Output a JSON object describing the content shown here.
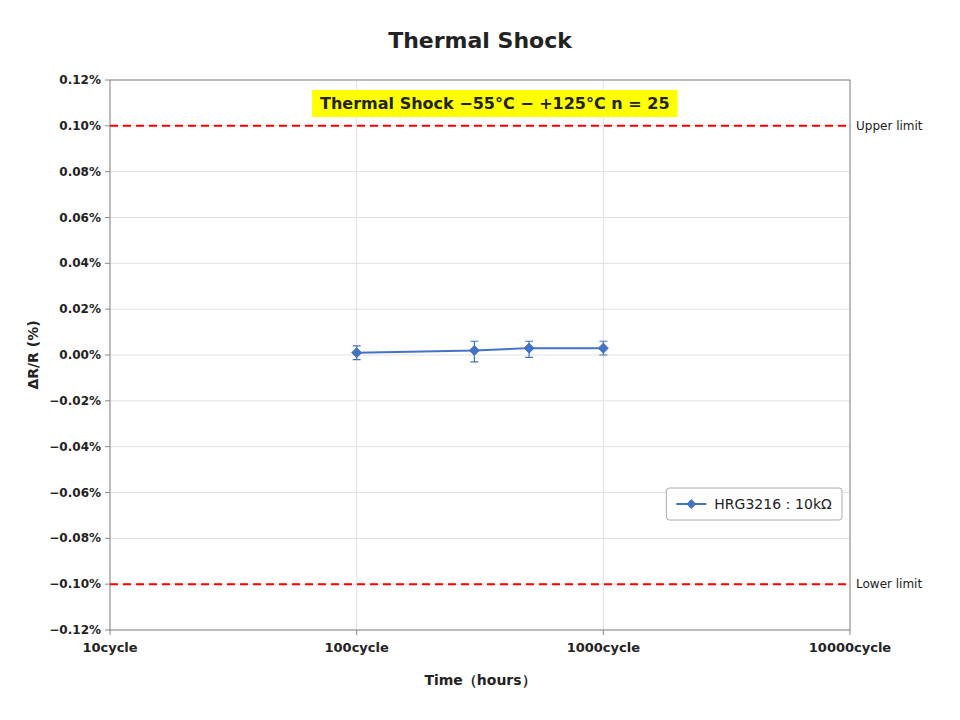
{
  "chart_data": {
    "type": "line",
    "title": "Thermal Shock",
    "x_label": "Time（hours）",
    "y_label": "ΔR/R (%)",
    "log": "x",
    "grid": true,
    "legend": "lower right",
    "xlim": [
      10,
      10000
    ],
    "xticks": [
      {
        "value": 10,
        "label": "10cycle"
      },
      {
        "value": 100,
        "label": "100cycle"
      },
      {
        "value": 1000,
        "label": "1000cycle"
      },
      {
        "value": 10000,
        "label": "10000cycle"
      }
    ],
    "ylim": [
      -0.12,
      0.12
    ],
    "yticks": [
      {
        "value": -0.12,
        "label": "−0.12%"
      },
      {
        "value": -0.1,
        "label": "−0.10%"
      },
      {
        "value": -0.08,
        "label": "−0.08%"
      },
      {
        "value": -0.06,
        "label": "−0.06%"
      },
      {
        "value": -0.04,
        "label": "−0.04%"
      },
      {
        "value": -0.02,
        "label": "−0.02%"
      },
      {
        "value": 0.0,
        "label": "0.00%"
      },
      {
        "value": 0.02,
        "label": "0.02%"
      },
      {
        "value": 0.04,
        "label": "0.04%"
      },
      {
        "value": 0.06,
        "label": "0.06%"
      },
      {
        "value": 0.08,
        "label": "0.08%"
      },
      {
        "value": 0.1,
        "label": "0.10%"
      },
      {
        "value": 0.12,
        "label": "0.12%"
      }
    ],
    "x": [
      100,
      300,
      500,
      1000
    ],
    "series": [
      {
        "name": "HRG3216：10kΩ",
        "color": "#4472C4",
        "marker": "diamond",
        "values": [
          0.001,
          0.002,
          0.003,
          0.003
        ],
        "error_up": [
          0.003,
          0.004,
          0.003,
          0.003
        ],
        "error_down": [
          0.003,
          0.005,
          0.004,
          0.003
        ]
      }
    ],
    "reference_lines": [
      {
        "value": 0.1,
        "label": "Upper limit",
        "color": "#FF0000",
        "line_style": "dashed"
      },
      {
        "value": -0.1,
        "label": "Lower limit",
        "color": "#FF0000",
        "line_style": "dashed"
      }
    ],
    "annotations": [
      {
        "text": "Thermal Shock  −55°C − +125°C   n = 25",
        "color": "#FFFF00"
      }
    ]
  }
}
